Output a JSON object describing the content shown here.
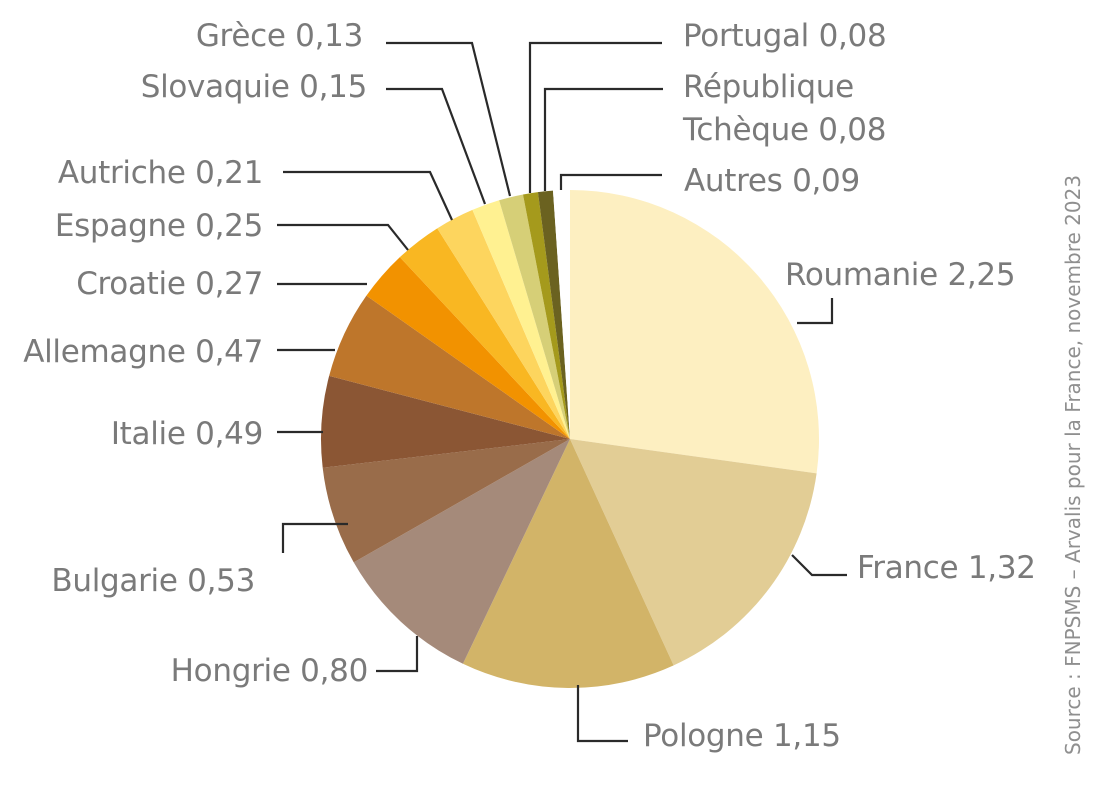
{
  "source": "Source : FNPSMS – Arvalis pour la France, novembre 2023",
  "chart_data": {
    "type": "pie",
    "title": "",
    "start": "12 o'clock",
    "direction": "clockwise",
    "slices": [
      {
        "label": "Roumanie",
        "value": 2.25,
        "display": "2,25",
        "color": "#FDEFC1"
      },
      {
        "label": "France",
        "value": 1.32,
        "display": "1,32",
        "color": "#E2CD95"
      },
      {
        "label": "Pologne",
        "value": 1.15,
        "display": "1,15",
        "color": "#D2B468"
      },
      {
        "label": "Hongrie",
        "value": 0.8,
        "display": "0,80",
        "color": "#A58A7A"
      },
      {
        "label": "Bulgarie",
        "value": 0.53,
        "display": "0,53",
        "color": "#996C4A"
      },
      {
        "label": "Italie",
        "value": 0.49,
        "display": "0,49",
        "color": "#8B5634"
      },
      {
        "label": "Allemagne",
        "value": 0.47,
        "display": "0,47",
        "color": "#BE762B"
      },
      {
        "label": "Croatie",
        "value": 0.27,
        "display": "0,27",
        "color": "#F29200"
      },
      {
        "label": "Espagne",
        "value": 0.25,
        "display": "0,25",
        "color": "#F9B722"
      },
      {
        "label": "Autriche",
        "value": 0.21,
        "display": "0,21",
        "color": "#FDD55E"
      },
      {
        "label": "Slovaquie",
        "value": 0.15,
        "display": "0,15",
        "color": "#FFF191"
      },
      {
        "label": "Grèce",
        "value": 0.13,
        "display": "0,13",
        "color": "#D6CF77"
      },
      {
        "label": "Portugal",
        "value": 0.08,
        "display": "0,08",
        "color": "#A59A1C"
      },
      {
        "label": "République Tchèque",
        "value": 0.08,
        "display": "0,08",
        "color": "#6B6220"
      },
      {
        "label": "Autres",
        "value": 0.09,
        "display": "0,09",
        "color": "#FFFFFF"
      }
    ]
  }
}
